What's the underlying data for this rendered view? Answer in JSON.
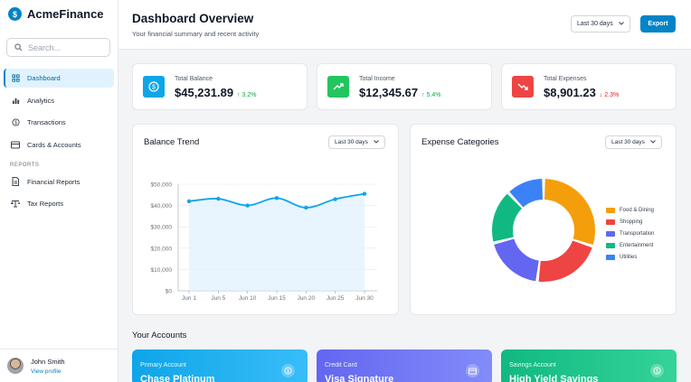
{
  "app": {
    "name": "AcmeFinance"
  },
  "search": {
    "placeholder": "Search..."
  },
  "nav": {
    "items": [
      {
        "label": "Dashboard",
        "icon": "grid-icon",
        "active": true
      },
      {
        "label": "Analytics",
        "icon": "bar-chart-icon"
      },
      {
        "label": "Transactions",
        "icon": "dollar-circle-icon"
      },
      {
        "label": "Cards & Accounts",
        "icon": "credit-card-icon"
      }
    ],
    "reports_section": "REPORTS",
    "report_items": [
      {
        "label": "Financial Reports",
        "icon": "document-icon"
      },
      {
        "label": "Tax Reports",
        "icon": "balance-icon"
      }
    ]
  },
  "user": {
    "name": "John Smith",
    "link": "View profile"
  },
  "header": {
    "title": "Dashboard Overview",
    "subtitle": "Your financial summary and recent activity",
    "range": "Last 30 days",
    "export_label": "Export"
  },
  "stats": [
    {
      "label": "Total Balance",
      "value": "$45,231.89",
      "change": "↑ 3.2%",
      "color": "#0ea5e9",
      "change_color": "#16a34a"
    },
    {
      "label": "Total Income",
      "value": "$12,345.67",
      "change": "↑ 5.4%",
      "color": "#22c55e",
      "change_color": "#16a34a"
    },
    {
      "label": "Total Expenses",
      "value": "$8,901.23",
      "change": "↓ 2.3%",
      "color": "#ef4444",
      "change_color": "#dc2626"
    }
  ],
  "balance_card": {
    "title": "Balance Trend",
    "range": "Last 30 days"
  },
  "expense_card": {
    "title": "Expense Categories",
    "range": "Last 30 days"
  },
  "accounts": {
    "title": "Your Accounts",
    "items": [
      {
        "type": "Primary Account",
        "name": "Chase Platinum",
        "icon": "dollar-circle-icon"
      },
      {
        "type": "Credit Card",
        "name": "Visa Signature",
        "icon": "credit-card-icon"
      },
      {
        "type": "Savings Account",
        "name": "High Yield Savings",
        "icon": "dollar-circle-icon"
      }
    ]
  },
  "chart_data": [
    {
      "type": "line",
      "title": "Balance Trend",
      "x": [
        "Jun 1",
        "Jun 5",
        "Jun 10",
        "Jun 15",
        "Jun 20",
        "Jun 25",
        "Jun 30"
      ],
      "series": [
        {
          "values": [
            42000,
            43200,
            40000,
            43500,
            39000,
            43000,
            45500
          ]
        }
      ],
      "yticks": [
        "$0",
        "$10,000",
        "$20,000",
        "$30,000",
        "$40,000",
        "$50,000"
      ],
      "ylim": [
        0,
        50000
      ],
      "grid": true,
      "color": "#0ea5e9"
    },
    {
      "type": "pie",
      "title": "Expense Categories",
      "donut": true,
      "labels": [
        "Food & Dining",
        "Shopping",
        "Transportation",
        "Entertainment",
        "Utilities"
      ],
      "values": [
        30,
        22,
        19,
        17,
        12
      ],
      "colors": [
        "#f59e0b",
        "#ef4444",
        "#6366f1",
        "#10b981",
        "#3b82f6"
      ],
      "legend": "right"
    }
  ]
}
